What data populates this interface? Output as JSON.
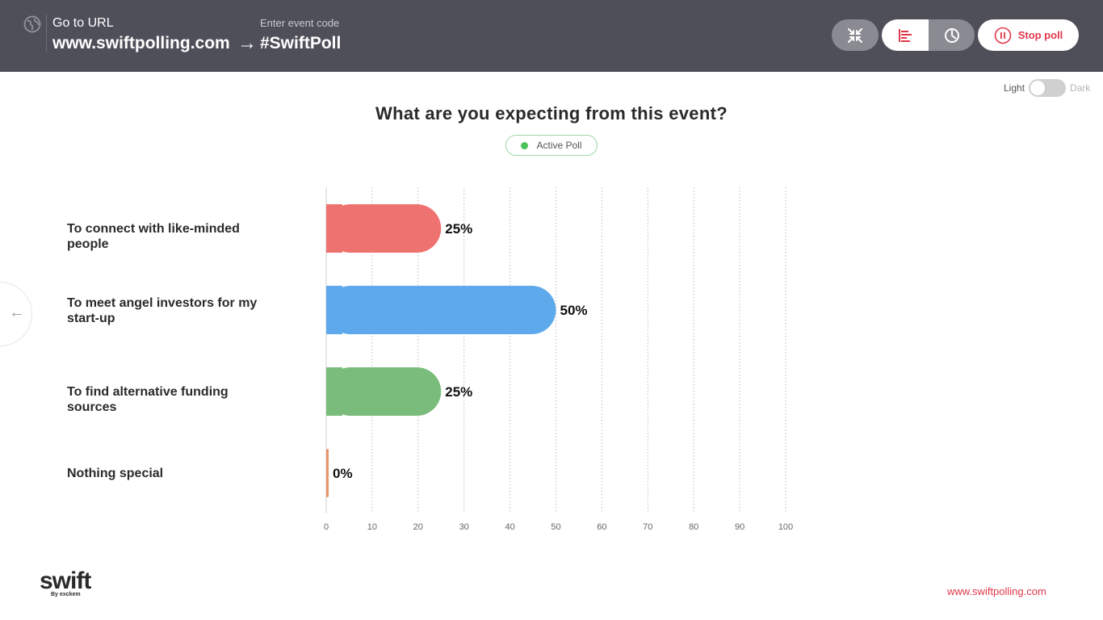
{
  "header": {
    "goto_label": "Go to URL",
    "url": "www.swiftpolling.com",
    "code_label": "Enter event code",
    "code": "#SwiftPoll",
    "stop_label": "Stop poll"
  },
  "theme_toggle": {
    "light_label": "Light",
    "dark_label": "Dark",
    "selected": "Light"
  },
  "poll": {
    "question": "What are you expecting from this event?",
    "status": "Active Poll"
  },
  "chart_data": {
    "type": "bar",
    "orientation": "horizontal",
    "categories": [
      "To connect with like-minded people",
      "To meet angel investors for my start-up",
      "To find alternative funding sources",
      "Nothing special"
    ],
    "values": [
      25,
      50,
      25,
      0
    ],
    "value_labels": [
      "25%",
      "50%",
      "25%",
      "0%"
    ],
    "colors": [
      "#ee7370",
      "#5ea9ec",
      "#7abc7b",
      "#e8956c"
    ],
    "xlim": [
      0,
      100
    ],
    "xticks": [
      "0",
      "10",
      "20",
      "30",
      "40",
      "50",
      "60",
      "70",
      "80",
      "90",
      "100"
    ],
    "grid": true
  },
  "footer": {
    "logo_text": "swift",
    "logo_sub": "By exckem",
    "url": "www.swiftpolling.com"
  },
  "colors": {
    "topbar": "#4f4f5a",
    "accent": "#e0374a",
    "active": "#4cc25a"
  }
}
